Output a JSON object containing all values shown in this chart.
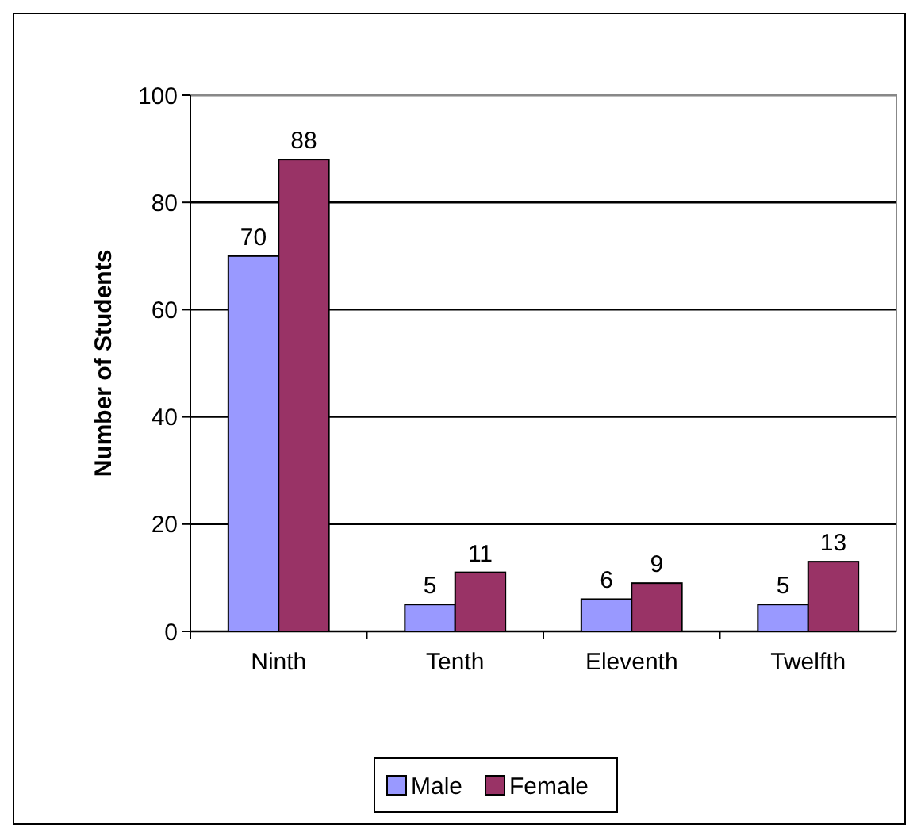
{
  "chart_data": {
    "type": "bar",
    "ylabel": "Number of Students",
    "categories": [
      "Ninth",
      "Tenth",
      "Eleventh",
      "Twelfth"
    ],
    "series": [
      {
        "name": "Male",
        "color": "#9999ff",
        "values": [
          70,
          5,
          6,
          5
        ]
      },
      {
        "name": "Female",
        "color": "#993366",
        "values": [
          88,
          11,
          9,
          13
        ]
      }
    ],
    "ylim": [
      0,
      100
    ],
    "yticks": [
      0,
      20,
      40,
      60,
      80,
      100
    ],
    "grid": "y",
    "legend": "bottom",
    "data_labels": true
  }
}
